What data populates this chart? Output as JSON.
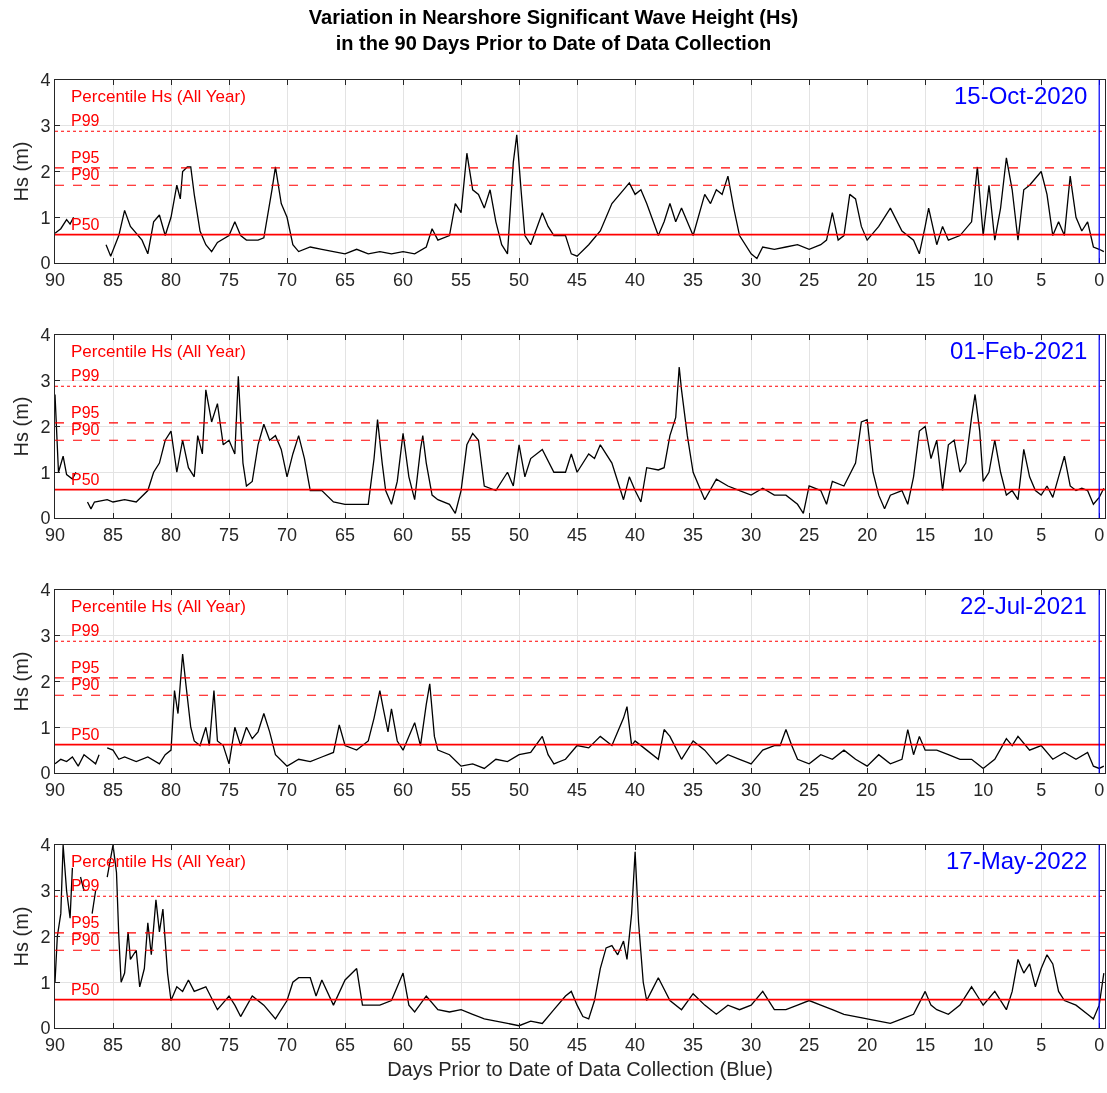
{
  "chart_data": [
    {
      "type": "line",
      "title": "Variation in Nearshore Significant Wave Height (Hs)\nin the 90 Days Prior to Date of Data Collection",
      "ylabel": "Hs (m)",
      "xlim": [
        90,
        -0.5
      ],
      "xticks": [
        90,
        85,
        80,
        75,
        70,
        65,
        60,
        55,
        50,
        45,
        40,
        35,
        30,
        25,
        20,
        15,
        10,
        5,
        0
      ],
      "ylim": [
        0,
        4
      ],
      "yticks": [
        0,
        1,
        2,
        3,
        4
      ],
      "grid": true,
      "line_style": "solid",
      "annotations": [
        "Percentile Hs (All Year)"
      ],
      "ref_lines": [
        {
          "axis": "y",
          "value": 2.88,
          "label": "P99",
          "color": "#ff0000",
          "line_style": "dotted"
        },
        {
          "axis": "y",
          "value": 2.08,
          "label": "P95",
          "color": "#ff0000",
          "line_style": "dashed"
        },
        {
          "axis": "y",
          "value": 1.7,
          "label": "P90",
          "color": "#ff0000",
          "line_style": "dashed"
        },
        {
          "axis": "y",
          "value": 0.62,
          "label": "P50",
          "color": "#ff0000",
          "line_style": "solid"
        },
        {
          "axis": "x",
          "value": 0,
          "label": "15-Oct-2020",
          "color": "#0000ff",
          "line_style": "solid"
        }
      ],
      "series": [
        {
          "color": "#000000",
          "x": [
            90,
            89.5,
            89,
            88.7,
            88.4,
            88.3,
            85.6,
            85.2,
            84.5,
            84,
            83.5,
            82.5,
            82,
            81.5,
            81,
            80.5,
            80,
            79.5,
            79.2,
            79,
            78.6,
            78.3,
            78,
            77.5,
            77,
            76.5,
            76,
            75,
            74.5,
            74,
            73.5,
            72.5,
            72,
            71.3,
            71,
            70.5,
            70,
            69.5,
            69,
            68,
            67,
            66,
            65,
            64,
            63,
            62,
            61,
            60,
            59,
            58,
            57.5,
            57,
            56,
            55.5,
            55,
            54.5,
            54,
            53.5,
            53,
            52.5,
            52,
            51.5,
            51,
            50.5,
            50.2,
            49.8,
            49.5,
            49,
            48,
            47.5,
            47,
            46,
            45.5,
            45,
            44,
            43,
            42,
            41,
            40.5,
            40,
            39.5,
            39,
            38,
            37.5,
            37,
            36.5,
            36,
            35,
            34,
            33.5,
            33,
            32.5,
            32,
            31.5,
            31,
            30,
            29.5,
            29,
            28,
            27,
            26,
            25,
            24,
            23.5,
            23,
            22.5,
            22,
            21.5,
            21,
            20.5,
            20,
            19,
            18,
            17,
            16,
            15.5,
            15,
            14.7,
            14,
            13.5,
            13,
            12,
            11,
            10.5,
            10,
            9.5,
            9,
            8.5,
            8,
            7.5,
            7,
            6.5,
            6,
            5,
            4.5,
            4,
            3.5,
            3,
            2.5,
            2,
            1.5,
            1,
            0.5,
            0,
            -0.4
          ],
          "values": [
            0.65,
            0.75,
            0.95,
            0.85,
            1.0,
            null,
            0.4,
            0.15,
            0.6,
            1.15,
            0.8,
            0.5,
            0.2,
            0.9,
            1.05,
            0.6,
            1.0,
            1.7,
            1.4,
            2.0,
            2.1,
            2.1,
            1.5,
            0.7,
            0.4,
            0.25,
            0.45,
            0.6,
            0.9,
            0.6,
            0.5,
            0.5,
            0.55,
            1.6,
            2.1,
            1.3,
            1.0,
            0.4,
            0.25,
            0.35,
            0.3,
            0.25,
            0.2,
            0.3,
            0.2,
            0.25,
            0.2,
            0.25,
            0.2,
            0.35,
            0.75,
            0.5,
            0.6,
            1.3,
            1.1,
            2.4,
            1.6,
            1.5,
            1.2,
            1.6,
            0.9,
            0.4,
            0.2,
            2.2,
            2.8,
            1.5,
            0.6,
            0.4,
            1.1,
            0.8,
            0.6,
            0.6,
            0.2,
            0.15,
            0.4,
            0.7,
            1.3,
            1.6,
            1.75,
            1.5,
            1.6,
            1.3,
            0.6,
            0.9,
            1.3,
            0.9,
            1.2,
            0.6,
            1.5,
            1.3,
            1.6,
            1.5,
            1.9,
            1.2,
            0.6,
            0.2,
            0.1,
            0.35,
            0.3,
            0.35,
            0.4,
            0.3,
            0.4,
            0.5,
            1.1,
            0.5,
            0.6,
            1.5,
            1.4,
            0.8,
            0.5,
            0.8,
            1.2,
            0.7,
            0.5,
            0.2,
            0.8,
            1.2,
            0.4,
            0.8,
            0.5,
            0.6,
            0.9,
            2.1,
            0.6,
            1.7,
            0.5,
            1.2,
            2.3,
            1.6,
            0.5,
            1.6,
            1.7,
            2.0,
            1.5,
            0.6,
            0.9,
            0.6,
            1.9,
            1.0,
            0.7,
            0.9,
            0.35,
            0.3,
            0.25
          ]
        }
      ]
    },
    {
      "type": "line",
      "ylabel": "Hs (m)",
      "xlim": [
        90,
        -0.5
      ],
      "xticks": [
        90,
        85,
        80,
        75,
        70,
        65,
        60,
        55,
        50,
        45,
        40,
        35,
        30,
        25,
        20,
        15,
        10,
        5,
        0
      ],
      "ylim": [
        0,
        4
      ],
      "yticks": [
        0,
        1,
        2,
        3,
        4
      ],
      "grid": true,
      "line_style": "solid",
      "annotations": [
        "Percentile Hs (All Year)"
      ],
      "ref_lines": [
        {
          "axis": "y",
          "value": 2.88,
          "label": "P99",
          "color": "#ff0000",
          "line_style": "dotted"
        },
        {
          "axis": "y",
          "value": 2.08,
          "label": "P95",
          "color": "#ff0000",
          "line_style": "dashed"
        },
        {
          "axis": "y",
          "value": 1.7,
          "label": "P90",
          "color": "#ff0000",
          "line_style": "dashed"
        },
        {
          "axis": "y",
          "value": 0.62,
          "label": "P50",
          "color": "#ff0000",
          "line_style": "solid"
        },
        {
          "axis": "x",
          "value": 0,
          "label": "01-Feb-2021",
          "color": "#0000ff",
          "line_style": "solid"
        }
      ],
      "series": [
        {
          "color": "#000000",
          "x": [
            90,
            89.7,
            89.3,
            89,
            88.5,
            88.2,
            88.1,
            87.2,
            86.9,
            86.6,
            85.5,
            85,
            84,
            83,
            82,
            81.5,
            81,
            80.5,
            80,
            79.5,
            79,
            78.5,
            78,
            77.7,
            77.3,
            77,
            76.5,
            76,
            75.5,
            75,
            74.5,
            74.2,
            73.8,
            73.5,
            73,
            72.5,
            72,
            71.5,
            71,
            70.5,
            70,
            69.5,
            69,
            68.5,
            68,
            67,
            66,
            65,
            64,
            63,
            62.5,
            62.2,
            61.8,
            61.5,
            61,
            60.5,
            60,
            59.5,
            59,
            58.5,
            58.3,
            58,
            57.5,
            57,
            56,
            55.5,
            55,
            54.5,
            54,
            53.5,
            53,
            52,
            51,
            50.5,
            50,
            49.5,
            49,
            48,
            47,
            46,
            45.5,
            45,
            44,
            43.5,
            43,
            42,
            41,
            40.5,
            40,
            39.5,
            39,
            38,
            37.5,
            37,
            36.5,
            36.2,
            36,
            35.5,
            35,
            34.5,
            34,
            33,
            32,
            31,
            30,
            29,
            28,
            27,
            26,
            25.5,
            25,
            24,
            23.5,
            23,
            22,
            21,
            20.5,
            20,
            19.5,
            19,
            18.5,
            18,
            17,
            16.5,
            16,
            15.5,
            15,
            14.5,
            14,
            13.5,
            13,
            12.5,
            12,
            11.5,
            11,
            10.7,
            10.3,
            10,
            9.5,
            9,
            8.5,
            8,
            7.5,
            7,
            6.5,
            6,
            5.5,
            5,
            4.5,
            4,
            3.5,
            3,
            2.5,
            2,
            1.5,
            1,
            0.5,
            0,
            -0.4
          ],
          "values": [
            2.7,
            1.0,
            1.35,
            0.95,
            0.85,
            1.0,
            null,
            0.35,
            0.2,
            0.35,
            0.4,
            0.35,
            0.4,
            0.35,
            0.6,
            1.0,
            1.2,
            1.7,
            1.9,
            1.0,
            1.7,
            1.1,
            0.9,
            1.8,
            1.4,
            2.8,
            2.1,
            2.5,
            1.6,
            1.7,
            1.4,
            3.1,
            1.2,
            0.7,
            0.8,
            1.6,
            2.05,
            1.7,
            1.8,
            1.5,
            0.9,
            1.4,
            1.8,
            1.3,
            0.6,
            0.6,
            0.35,
            0.3,
            0.3,
            0.3,
            1.3,
            2.15,
            1.2,
            0.6,
            0.3,
            0.8,
            1.85,
            0.9,
            0.4,
            1.5,
            1.8,
            1.2,
            0.5,
            0.4,
            0.3,
            0.1,
            0.6,
            1.6,
            1.85,
            1.7,
            0.7,
            0.6,
            1.0,
            0.7,
            1.6,
            0.9,
            1.3,
            1.5,
            1.0,
            1.0,
            1.4,
            1.0,
            1.4,
            1.3,
            1.6,
            1.2,
            0.4,
            0.9,
            0.6,
            0.35,
            1.1,
            1.05,
            1.1,
            1.8,
            2.2,
            3.3,
            2.8,
            1.8,
            1.0,
            0.7,
            0.4,
            0.85,
            0.7,
            0.6,
            0.5,
            0.65,
            0.5,
            0.5,
            0.3,
            0.1,
            0.7,
            0.6,
            0.3,
            0.8,
            0.7,
            1.2,
            2.1,
            2.15,
            1.0,
            0.5,
            0.2,
            0.5,
            0.6,
            0.3,
            0.9,
            1.9,
            2.0,
            1.3,
            1.7,
            0.6,
            1.6,
            1.7,
            1.0,
            1.2,
            2.2,
            2.7,
            1.9,
            0.8,
            1.0,
            1.7,
            1.0,
            0.5,
            0.6,
            0.4,
            1.5,
            0.9,
            0.6,
            0.5,
            0.7,
            0.45,
            0.9,
            1.35,
            0.7,
            0.6,
            0.65,
            0.6,
            0.3,
            0.45,
            0.65
          ]
        }
      ]
    },
    {
      "type": "line",
      "ylabel": "Hs (m)",
      "xlim": [
        90,
        -0.5
      ],
      "xticks": [
        90,
        85,
        80,
        75,
        70,
        65,
        60,
        55,
        50,
        45,
        40,
        35,
        30,
        25,
        20,
        15,
        10,
        5,
        0
      ],
      "ylim": [
        0,
        4
      ],
      "yticks": [
        0,
        1,
        2,
        3,
        4
      ],
      "grid": true,
      "line_style": "solid",
      "annotations": [
        "Percentile Hs (All Year)"
      ],
      "ref_lines": [
        {
          "axis": "y",
          "value": 2.88,
          "label": "P99",
          "color": "#ff0000",
          "line_style": "dotted"
        },
        {
          "axis": "y",
          "value": 2.08,
          "label": "P95",
          "color": "#ff0000",
          "line_style": "dashed"
        },
        {
          "axis": "y",
          "value": 1.7,
          "label": "P90",
          "color": "#ff0000",
          "line_style": "dashed"
        },
        {
          "axis": "y",
          "value": 0.62,
          "label": "P50",
          "color": "#ff0000",
          "line_style": "solid"
        },
        {
          "axis": "x",
          "value": 0,
          "label": "22-Jul-2021",
          "color": "#0000ff",
          "line_style": "solid"
        }
      ],
      "series": [
        {
          "color": "#000000",
          "x": [
            90,
            89.5,
            89,
            88.5,
            88,
            87.5,
            87,
            86.5,
            86.2,
            86.1,
            85.5,
            85,
            84.5,
            84,
            83,
            82,
            81,
            80.5,
            80,
            79.7,
            79.4,
            79,
            78.7,
            78.3,
            78,
            77.5,
            77,
            76.7,
            76.3,
            76,
            75.5,
            75,
            74.5,
            74,
            73.5,
            73,
            72.5,
            72,
            71.5,
            71,
            70,
            69,
            68,
            67,
            66,
            65.5,
            65,
            64,
            63,
            62.5,
            62,
            61.7,
            61.3,
            61,
            60.5,
            60,
            59.5,
            59,
            58.5,
            58,
            57.7,
            57.3,
            57,
            56,
            55,
            54,
            53,
            52,
            51,
            50,
            49,
            48,
            47.5,
            47,
            46,
            45,
            44,
            43,
            42,
            41,
            40.7,
            40.3,
            40,
            39,
            38,
            37.5,
            37,
            36,
            35,
            34,
            33,
            32,
            31,
            30,
            29,
            28,
            27.5,
            27,
            26.5,
            26,
            25,
            24,
            23,
            22,
            21,
            20,
            19,
            18,
            17,
            16.5,
            16,
            15.5,
            15,
            14,
            13,
            12,
            11,
            10,
            9,
            8,
            7.5,
            7,
            6,
            5,
            4,
            3,
            2,
            1,
            0.5,
            0,
            -0.4
          ],
          "values": [
            0.2,
            0.3,
            0.25,
            0.35,
            0.15,
            0.4,
            0.3,
            0.2,
            0.4,
            null,
            0.55,
            0.5,
            0.3,
            0.35,
            0.25,
            0.35,
            0.2,
            0.4,
            0.5,
            1.8,
            1.3,
            2.6,
            1.9,
            1.0,
            0.7,
            0.6,
            1.0,
            0.6,
            1.8,
            0.7,
            0.6,
            0.2,
            1.0,
            0.6,
            1.0,
            0.75,
            0.9,
            1.3,
            0.9,
            0.4,
            0.15,
            0.3,
            0.25,
            0.35,
            0.45,
            1.05,
            0.6,
            0.5,
            0.7,
            1.2,
            1.8,
            1.4,
            0.9,
            1.4,
            0.7,
            0.5,
            0.8,
            1.1,
            0.6,
            1.5,
            1.95,
            0.8,
            0.5,
            0.4,
            0.15,
            0.2,
            0.1,
            0.3,
            0.25,
            0.4,
            0.45,
            0.8,
            0.4,
            0.2,
            0.3,
            0.6,
            0.55,
            0.8,
            0.6,
            1.2,
            1.45,
            0.6,
            0.7,
            0.5,
            0.3,
            0.95,
            0.8,
            0.3,
            0.7,
            0.5,
            0.2,
            0.4,
            0.3,
            0.2,
            0.5,
            0.6,
            0.6,
            0.95,
            0.6,
            0.3,
            0.2,
            0.4,
            0.3,
            0.5,
            0.3,
            0.15,
            0.4,
            0.2,
            0.3,
            0.95,
            0.4,
            0.8,
            0.5,
            0.5,
            0.4,
            0.3,
            0.3,
            0.1,
            0.3,
            0.75,
            0.6,
            0.8,
            0.5,
            0.6,
            0.3,
            0.45,
            0.3,
            0.45,
            0.15,
            0.1,
            0.15
          ]
        }
      ]
    },
    {
      "type": "line",
      "ylabel": "Hs (m)",
      "xlabel": "Days Prior to Date of Data Collection (Blue)",
      "xlim": [
        90,
        -0.5
      ],
      "xticks": [
        90,
        85,
        80,
        75,
        70,
        65,
        60,
        55,
        50,
        45,
        40,
        35,
        30,
        25,
        20,
        15,
        10,
        5,
        0
      ],
      "ylim": [
        0,
        4
      ],
      "yticks": [
        0,
        1,
        2,
        3,
        4
      ],
      "grid": true,
      "line_style": "solid",
      "annotations": [
        "Percentile Hs (All Year)"
      ],
      "ref_lines": [
        {
          "axis": "y",
          "value": 2.88,
          "label": "P99",
          "color": "#ff0000",
          "line_style": "dotted"
        },
        {
          "axis": "y",
          "value": 2.08,
          "label": "P95",
          "color": "#ff0000",
          "line_style": "dashed"
        },
        {
          "axis": "y",
          "value": 1.7,
          "label": "P90",
          "color": "#ff0000",
          "line_style": "dashed"
        },
        {
          "axis": "y",
          "value": 0.62,
          "label": "P50",
          "color": "#ff0000",
          "line_style": "solid"
        },
        {
          "axis": "x",
          "value": 0,
          "label": "17-May-2022",
          "color": "#0000ff",
          "line_style": "solid"
        }
      ],
      "series": [
        {
          "color": "#000000",
          "x": [
            90,
            89.8,
            89.5,
            89.3,
            89,
            88.7,
            88.5,
            88.3,
            87.8,
            87.5,
            87.2,
            86.8,
            86.5,
            86.2,
            85.5,
            85,
            84.7,
            84.5,
            84.3,
            84,
            83.7,
            83.5,
            83,
            82.7,
            82.3,
            82,
            81.7,
            81.3,
            81,
            80.7,
            80.3,
            80,
            79.5,
            79,
            78.5,
            78,
            77,
            76,
            75,
            74.5,
            74,
            73,
            72,
            71,
            70,
            69.5,
            69,
            68,
            67.5,
            67,
            66,
            65,
            64,
            63.5,
            63,
            62,
            61,
            60.5,
            60,
            59.5,
            59,
            58,
            57,
            56,
            55,
            54,
            53,
            52,
            51,
            50,
            49,
            48,
            47,
            46,
            45.5,
            45,
            44.5,
            44,
            43.5,
            43,
            42.5,
            42,
            41.5,
            41,
            40.7,
            40.3,
            40,
            39.7,
            39.3,
            39,
            38.5,
            38,
            37,
            36,
            35,
            34,
            33,
            32,
            31,
            30,
            29,
            28,
            27,
            26,
            25,
            24,
            23,
            22,
            21,
            20,
            19,
            18,
            17,
            16,
            15,
            14.5,
            14,
            13,
            12,
            11,
            10.5,
            10,
            9,
            8,
            7.5,
            7,
            6.5,
            6,
            5.5,
            5,
            4.5,
            4,
            3.5,
            3,
            2,
            1,
            0.5,
            0,
            -0.4
          ],
          "values": [
            1.0,
            2.0,
            2.5,
            4.0,
            3.0,
            2.4,
            3.5,
            null,
            3.3,
            3.0,
            null,
            2.5,
            3.0,
            null,
            3.3,
            4.0,
            3.4,
            2.0,
            1.0,
            1.2,
            2.1,
            1.5,
            1.7,
            0.9,
            1.3,
            2.3,
            1.6,
            2.8,
            2.1,
            2.6,
            1.2,
            0.6,
            0.9,
            0.8,
            1.05,
            0.8,
            0.9,
            0.4,
            0.7,
            0.5,
            0.25,
            0.7,
            0.5,
            0.2,
            0.6,
            1.0,
            1.1,
            1.1,
            0.7,
            1.05,
            0.5,
            1.05,
            1.3,
            0.5,
            0.5,
            0.5,
            0.6,
            0.9,
            1.2,
            0.5,
            0.35,
            0.7,
            0.4,
            0.35,
            0.4,
            0.3,
            0.2,
            0.15,
            0.1,
            0.05,
            0.15,
            0.1,
            0.4,
            0.7,
            0.8,
            0.5,
            0.25,
            0.2,
            0.6,
            1.3,
            1.75,
            1.8,
            1.6,
            1.9,
            1.5,
            2.5,
            3.85,
            2.3,
            1.0,
            0.6,
            0.85,
            1.1,
            0.6,
            0.4,
            0.75,
            0.5,
            0.3,
            0.5,
            0.4,
            0.5,
            0.8,
            0.4,
            0.4,
            0.5,
            0.6,
            0.5,
            0.4,
            0.3,
            0.25,
            0.2,
            0.15,
            0.1,
            0.2,
            0.3,
            0.8,
            0.5,
            0.4,
            0.3,
            0.5,
            0.9,
            0.7,
            0.5,
            0.8,
            0.4,
            0.8,
            1.5,
            1.2,
            1.4,
            0.9,
            1.3,
            1.6,
            1.4,
            0.8,
            0.6,
            0.5,
            0.3,
            0.2,
            0.5,
            1.2
          ]
        }
      ]
    }
  ]
}
